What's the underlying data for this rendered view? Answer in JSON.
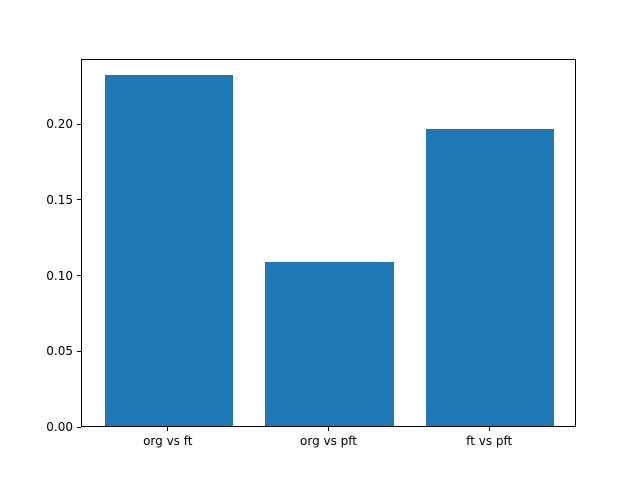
{
  "chart_data": {
    "type": "bar",
    "categories": [
      "org vs ft",
      "org vs pft",
      "ft vs pft"
    ],
    "values": [
      0.232,
      0.108,
      0.196
    ],
    "title": "",
    "xlabel": "",
    "ylabel": "",
    "ylim": [
      0,
      0.243
    ],
    "yticks": [
      0.0,
      0.05,
      0.1,
      0.15,
      0.2
    ],
    "ytick_labels": [
      "0.00",
      "0.05",
      "0.10",
      "0.15",
      "0.20"
    ],
    "bar_color": "#1f77b4",
    "background_color": "#ffffff",
    "spine_color": "#000000",
    "grid": false,
    "legend": null,
    "bar_width_fraction": 0.8
  }
}
